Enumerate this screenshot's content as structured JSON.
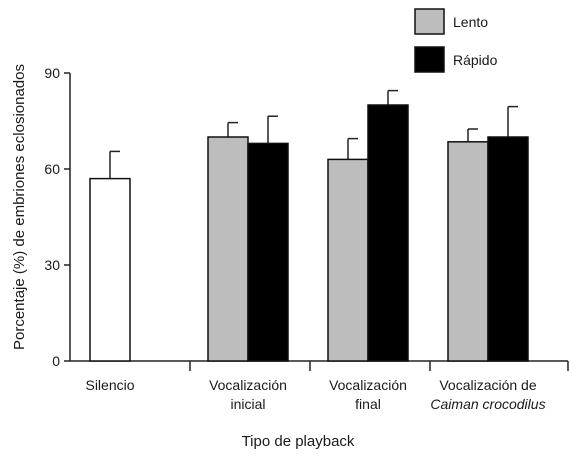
{
  "chart_data": {
    "type": "bar",
    "xlabel": "Tipo de playback",
    "ylabel": "Porcentaje (%) de embriones eclosionados",
    "ylim": [
      0,
      90
    ],
    "yticks": [
      "0",
      "30",
      "60",
      "90"
    ],
    "grid": false,
    "legend_position": "top-right",
    "legend": [
      {
        "label": "Lento",
        "color": "#bdbdbd"
      },
      {
        "label": "Rápido",
        "color": "#000000"
      }
    ],
    "groups": [
      {
        "label_lines": [
          "Silencio"
        ],
        "bars": [
          {
            "series": "Silencio",
            "value": 57,
            "error": 8.5,
            "color": "#ffffff"
          }
        ]
      },
      {
        "label_lines": [
          "Vocalización",
          "inicial"
        ],
        "bars": [
          {
            "series": "Lento",
            "value": 70,
            "error": 4.5,
            "color": "#bdbdbd"
          },
          {
            "series": "Rápido",
            "value": 68,
            "error": 8.5,
            "color": "#000000"
          }
        ]
      },
      {
        "label_lines": [
          "Vocalización",
          "final"
        ],
        "bars": [
          {
            "series": "Lento",
            "value": 63,
            "error": 6.5,
            "color": "#bdbdbd"
          },
          {
            "series": "Rápido",
            "value": 80,
            "error": 4.5,
            "color": "#000000"
          }
        ]
      },
      {
        "label_lines": [
          "Vocalización de",
          "Caiman crocodilus"
        ],
        "italic_line": 1,
        "bars": [
          {
            "series": "Lento",
            "value": 68.5,
            "error": 4,
            "color": "#bdbdbd"
          },
          {
            "series": "Rápido",
            "value": 70,
            "error": 9.5,
            "color": "#000000"
          }
        ]
      }
    ]
  }
}
